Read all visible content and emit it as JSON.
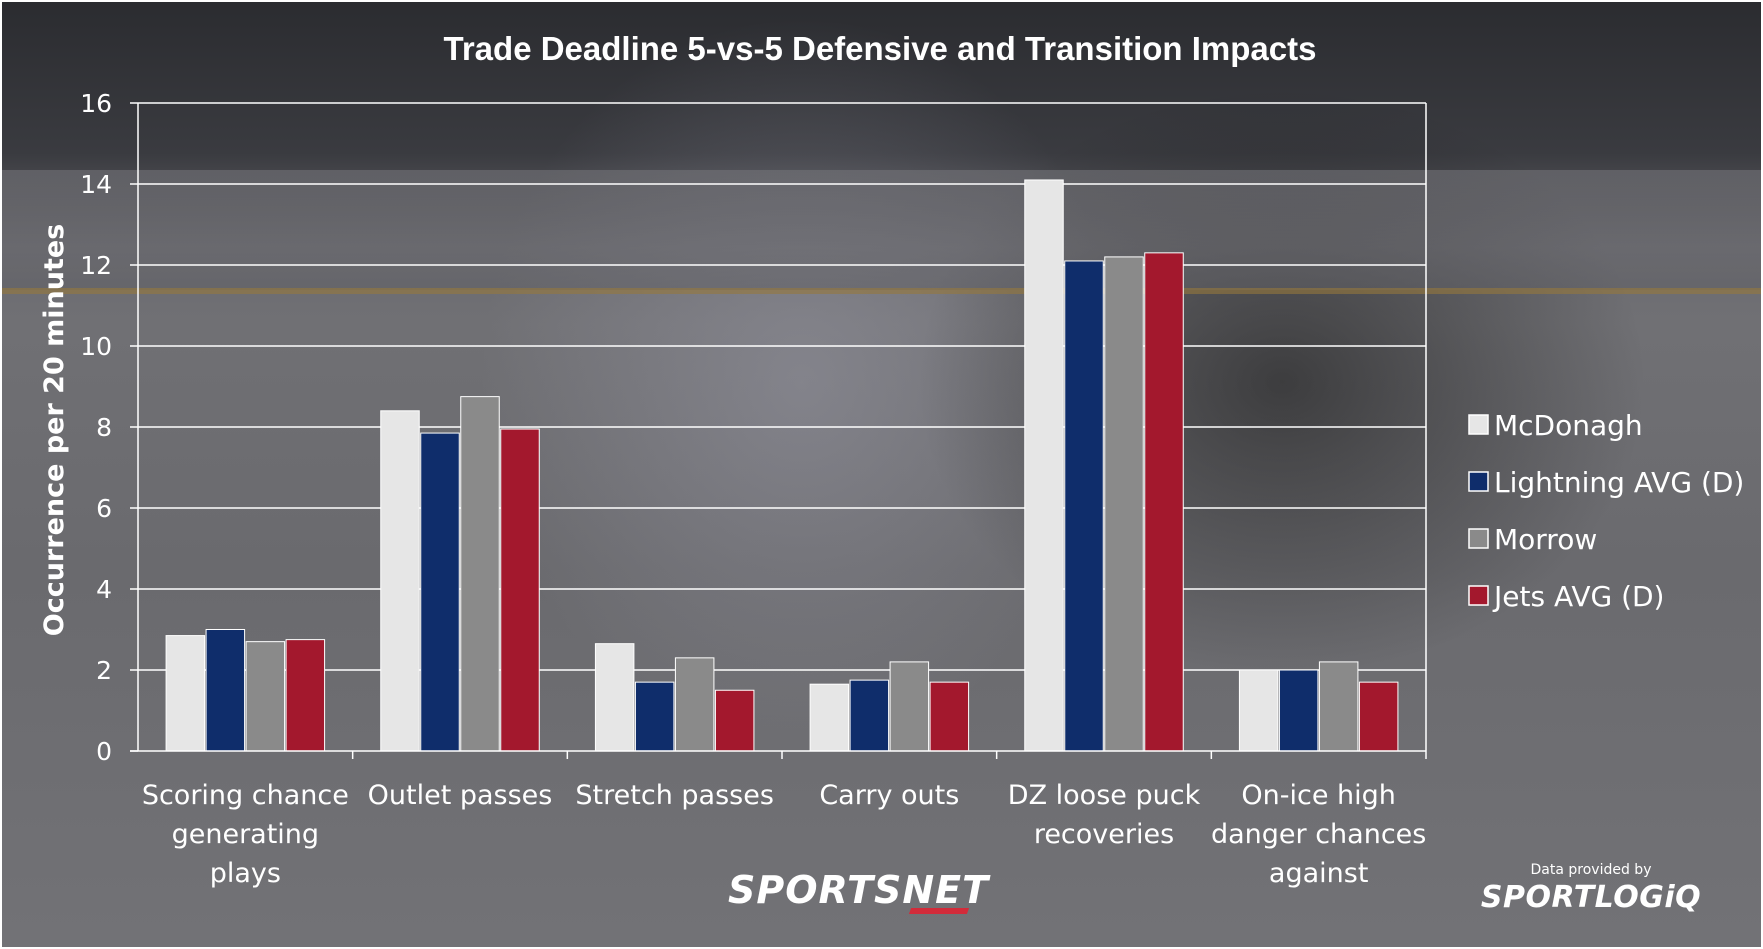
{
  "chart_data": {
    "type": "bar",
    "title": "Trade Deadline 5-vs-5 Defensive and Transition Impacts",
    "ylabel": "Occurrence per 20 minutes",
    "xlabel": "",
    "ylim": [
      0,
      16
    ],
    "yticks": [
      0,
      2,
      4,
      6,
      8,
      10,
      12,
      14,
      16
    ],
    "grid": true,
    "legend_position": "right",
    "categories": [
      [
        "Scoring chance",
        "generating",
        "plays"
      ],
      [
        "Outlet passes"
      ],
      [
        "Stretch passes"
      ],
      [
        "Carry outs"
      ],
      [
        "DZ loose puck",
        "recoveries"
      ],
      [
        "On-ice high",
        "danger chances",
        "against"
      ]
    ],
    "series": [
      {
        "name": "McDonagh",
        "color": "#e6e6e6",
        "values": [
          2.85,
          8.4,
          2.65,
          1.65,
          14.1,
          2.0
        ]
      },
      {
        "name": "Lightning AVG (D)",
        "color": "#0f2d6b",
        "values": [
          3.0,
          7.85,
          1.7,
          1.75,
          12.1,
          2.0
        ]
      },
      {
        "name": "Morrow",
        "color": "#8a8a8a",
        "values": [
          2.7,
          8.75,
          2.3,
          2.2,
          12.2,
          2.2
        ]
      },
      {
        "name": "Jets AVG (D)",
        "color": "#a3182d",
        "values": [
          2.75,
          7.95,
          1.5,
          1.7,
          12.3,
          1.7
        ]
      }
    ]
  },
  "branding": {
    "logo_text": "SPORTSNET",
    "credit_small": "Data provided by",
    "credit_logo": "SPORTLOGiQ"
  }
}
